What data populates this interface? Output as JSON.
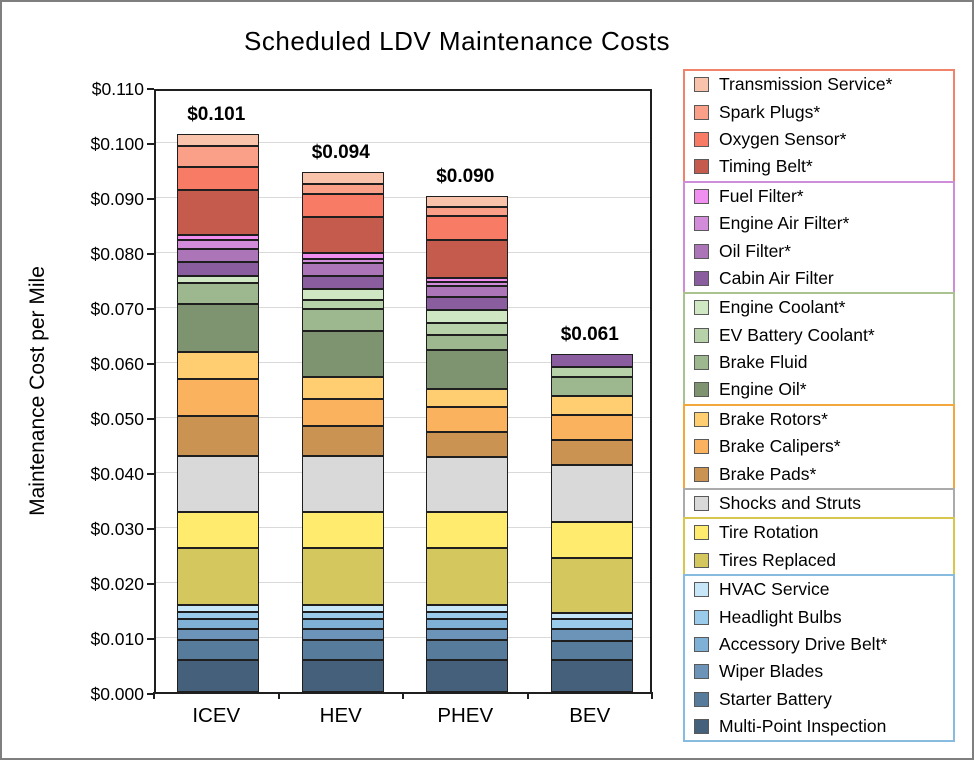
{
  "title": "Scheduled LDV Maintenance Costs",
  "y_axis": {
    "title": "Maintenance Cost per Mile",
    "ticks": [
      "$0.000",
      "$0.010",
      "$0.020",
      "$0.030",
      "$0.040",
      "$0.050",
      "$0.060",
      "$0.070",
      "$0.080",
      "$0.090",
      "$0.100",
      "$0.110"
    ],
    "min": 0,
    "max": 0.11,
    "step": 0.01
  },
  "chart_data": {
    "type": "bar",
    "stacked": true,
    "title": "Scheduled LDV Maintenance Costs",
    "xlabel": "",
    "ylabel": "Maintenance Cost per Mile",
    "ylim": [
      0,
      0.11
    ],
    "grid": true,
    "legend_position": "right",
    "categories": [
      "ICEV",
      "HEV",
      "PHEV",
      "BEV"
    ],
    "totals_labels": [
      "$0.101",
      "$0.094",
      "$0.090",
      "$0.061"
    ],
    "totals": [
      0.101,
      0.094,
      0.09,
      0.061
    ],
    "series": [
      {
        "name": "Multi-Point Inspection",
        "color": "#44607a",
        "values": [
          0.0058,
          0.0058,
          0.0058,
          0.0058
        ]
      },
      {
        "name": "Starter Battery",
        "color": "#567b9b",
        "values": [
          0.0036,
          0.0036,
          0.0036,
          0.0035
        ]
      },
      {
        "name": "Wiper Blades",
        "color": "#6c94b8",
        "values": [
          0.002,
          0.002,
          0.002,
          0.0022
        ]
      },
      {
        "name": "Accessory Drive Belt*",
        "color": "#7fb0d5",
        "values": [
          0.0018,
          0.0018,
          0.0018,
          0
        ]
      },
      {
        "name": "Headlight Bulbs",
        "color": "#9bcbeb",
        "values": [
          0.0014,
          0.0014,
          0.0014,
          0.0017
        ]
      },
      {
        "name": "HVAC Service",
        "color": "#c7e6f8",
        "values": [
          0.0012,
          0.0012,
          0.0012,
          0.0011
        ]
      },
      {
        "name": "Tires Replaced",
        "color": "#d4c75e",
        "values": [
          0.0103,
          0.0103,
          0.0103,
          0.0101
        ]
      },
      {
        "name": "Tire Rotation",
        "color": "#ffec6e",
        "values": [
          0.0067,
          0.0067,
          0.0067,
          0.0065
        ]
      },
      {
        "name": "Shocks and Struts",
        "color": "#d9d9d9",
        "values": [
          0.0102,
          0.0102,
          0.01,
          0.0103
        ]
      },
      {
        "name": "Brake Pads*",
        "color": "#cb9351",
        "values": [
          0.0071,
          0.0053,
          0.0044,
          0.0047
        ]
      },
      {
        "name": "Brake Calipers*",
        "color": "#fbb25f",
        "values": [
          0.0068,
          0.005,
          0.0046,
          0.0044
        ]
      },
      {
        "name": "Brake Rotors*",
        "color": "#ffce70",
        "values": [
          0.0049,
          0.004,
          0.0033,
          0.0035
        ]
      },
      {
        "name": "Engine Oil*",
        "color": "#7e9470",
        "values": [
          0.0087,
          0.0084,
          0.0071,
          0
        ]
      },
      {
        "name": "Brake Fluid",
        "color": "#9db88f",
        "values": [
          0.0038,
          0.004,
          0.0028,
          0.0035
        ]
      },
      {
        "name": "EV Battery Coolant*",
        "color": "#b7d2a8",
        "values": [
          0,
          0.0016,
          0.0021,
          0.0018
        ]
      },
      {
        "name": "Engine Coolant*",
        "color": "#cfe7c2",
        "values": [
          0.0013,
          0.002,
          0.0023,
          0
        ]
      },
      {
        "name": "Cabin Air Filter",
        "color": "#8a5d9e",
        "values": [
          0.0025,
          0.0024,
          0.0025,
          0.0024
        ]
      },
      {
        "name": "Oil Filter*",
        "color": "#ac75b8",
        "values": [
          0.0024,
          0.0023,
          0.002,
          0
        ]
      },
      {
        "name": "Engine Air Filter*",
        "color": "#d28cd9",
        "values": [
          0.0017,
          0.0007,
          0.0006,
          0
        ]
      },
      {
        "name": "Fuel Filter*",
        "color": "#f08fef",
        "values": [
          0.0009,
          0.0011,
          0.0008,
          0
        ]
      },
      {
        "name": "Timing Belt*",
        "color": "#c55b4d",
        "values": [
          0.0082,
          0.0066,
          0.0068,
          0
        ]
      },
      {
        "name": "Oxygen Sensor*",
        "color": "#f87b65",
        "values": [
          0.0042,
          0.0042,
          0.0045,
          0
        ]
      },
      {
        "name": "Spark Plugs*",
        "color": "#fa9f88",
        "values": [
          0.0038,
          0.0018,
          0.0016,
          0
        ]
      },
      {
        "name": "Transmission Service*",
        "color": "#f9c3ab",
        "values": [
          0.0022,
          0.0021,
          0.0019,
          0
        ]
      }
    ]
  },
  "legend": {
    "groups": [
      {
        "border_color": "#f0836a",
        "items": [
          "Transmission Service*",
          "Spark Plugs*",
          "Oxygen Sensor*",
          "Timing Belt*"
        ]
      },
      {
        "border_color": "#ce8ed9",
        "items": [
          "Fuel Filter*",
          "Engine Air Filter*",
          "Oil Filter*",
          "Cabin Air Filter"
        ]
      },
      {
        "border_color": "#a9c28f",
        "items": [
          "Engine Coolant*",
          "EV Battery Coolant*",
          "Brake Fluid",
          "Engine Oil*"
        ]
      },
      {
        "border_color": "#f2a83d",
        "items": [
          "Brake Rotors*",
          "Brake Calipers*",
          "Brake Pads*"
        ]
      },
      {
        "border_color": "#ababab",
        "items": [
          "Shocks and Struts"
        ]
      },
      {
        "border_color": "#d9c74d",
        "items": [
          "Tire Rotation",
          "Tires Replaced"
        ]
      },
      {
        "border_color": "#88bbe0",
        "items": [
          "HVAC Service",
          "Headlight Bulbs",
          "Accessory Drive Belt*",
          "Wiper Blades",
          "Starter Battery",
          "Multi-Point Inspection"
        ]
      }
    ]
  }
}
